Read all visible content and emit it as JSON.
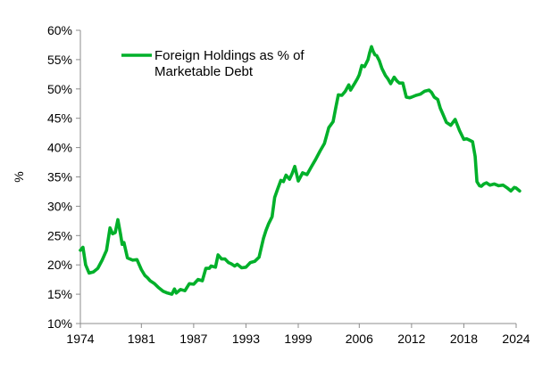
{
  "chart_data": {
    "type": "line",
    "title": "",
    "xlabel": "",
    "ylabel": "%",
    "xlim": [
      1974,
      2024
    ],
    "ylim": [
      10,
      60
    ],
    "xticks": [
      1974,
      1981,
      1987,
      1993,
      1999,
      2006,
      2012,
      2018,
      2024
    ],
    "xtick_labels": [
      "1974",
      "1981",
      "1987",
      "1993",
      "1999",
      "2006",
      "2012",
      "2018",
      "2024"
    ],
    "yticks": [
      10,
      15,
      20,
      25,
      30,
      35,
      40,
      45,
      50,
      55,
      60
    ],
    "ytick_labels": [
      "10%",
      "15%",
      "20%",
      "25%",
      "30%",
      "35%",
      "40%",
      "45%",
      "50%",
      "55%",
      "60%"
    ],
    "grid": false,
    "legend": {
      "position": "top-left",
      "lines": [
        "Foreign Holdings as % of",
        "Marketable Debt"
      ]
    },
    "color": "#00b02a",
    "series": [
      {
        "name": "Foreign Holdings as % of Marketable Debt",
        "x": [
          1974.0,
          1974.3,
          1974.6,
          1975.0,
          1975.5,
          1976.0,
          1976.5,
          1977.0,
          1977.4,
          1977.7,
          1978.0,
          1978.3,
          1978.6,
          1978.8,
          1979.0,
          1979.4,
          1979.7,
          1980.0,
          1980.5,
          1981.0,
          1981.4,
          1981.7,
          1982.0,
          1982.5,
          1983.0,
          1983.5,
          1984.0,
          1984.5,
          1984.8,
          1985.0,
          1985.5,
          1986.0,
          1986.5,
          1987.0,
          1987.5,
          1988.0,
          1988.4,
          1988.8,
          1989.0,
          1989.5,
          1989.8,
          1990.2,
          1990.6,
          1991.0,
          1991.3,
          1991.7,
          1992.0,
          1992.5,
          1993.0,
          1993.5,
          1994.0,
          1994.5,
          1995.0,
          1995.3,
          1995.6,
          1996.0,
          1996.3,
          1996.6,
          1997.0,
          1997.3,
          1997.6,
          1998.0,
          1998.3,
          1998.6,
          1999.0,
          1999.5,
          2000.0,
          2000.5,
          2001.0,
          2001.5,
          2002.0,
          2002.5,
          2003.0,
          2003.3,
          2003.6,
          2004.0,
          2004.4,
          2004.8,
          2005.0,
          2005.5,
          2005.8,
          2006.0,
          2006.3,
          2006.6,
          2007.0,
          2007.2,
          2007.4,
          2007.6,
          2007.8,
          2008.0,
          2008.3,
          2008.6,
          2009.0,
          2009.3,
          2009.6,
          2010.0,
          2010.3,
          2010.6,
          2011.0,
          2011.4,
          2011.8,
          2012.0,
          2012.5,
          2013.0,
          2013.5,
          2014.0,
          2014.3,
          2014.6,
          2015.0,
          2015.3,
          2015.6,
          2016.0,
          2016.5,
          2017.0,
          2017.5,
          2018.0,
          2018.3,
          2018.6,
          2019.0,
          2019.3,
          2019.5,
          2019.8,
          2020.0,
          2020.3,
          2020.6,
          2021.0,
          2021.5,
          2022.0,
          2022.5,
          2023.0,
          2023.4,
          2023.8,
          2024.0,
          2024.4
        ],
        "values": [
          22.5,
          23.0,
          20.0,
          18.6,
          18.8,
          19.4,
          20.8,
          22.5,
          26.3,
          25.3,
          25.5,
          27.7,
          25.3,
          23.5,
          23.8,
          21.2,
          21.0,
          20.8,
          20.9,
          19.2,
          18.2,
          17.8,
          17.3,
          16.8,
          16.1,
          15.5,
          15.2,
          15.0,
          15.9,
          15.2,
          15.8,
          15.6,
          16.8,
          16.7,
          17.5,
          17.3,
          19.4,
          19.4,
          19.8,
          19.6,
          21.7,
          21.0,
          21.0,
          20.4,
          20.2,
          19.8,
          20.1,
          19.5,
          19.6,
          20.4,
          20.6,
          21.3,
          24.5,
          25.9,
          27.0,
          28.2,
          31.5,
          32.8,
          34.4,
          34.2,
          35.3,
          34.6,
          35.6,
          36.8,
          34.3,
          35.7,
          35.4,
          36.7,
          38.0,
          39.4,
          40.7,
          43.4,
          44.4,
          46.8,
          49.0,
          48.9,
          49.6,
          50.7,
          49.8,
          51.0,
          51.8,
          52.4,
          54.0,
          53.8,
          55.0,
          56.2,
          57.2,
          56.4,
          55.8,
          55.7,
          54.8,
          53.5,
          52.3,
          51.7,
          50.9,
          52.0,
          51.4,
          51.0,
          51.0,
          48.6,
          48.5,
          48.6,
          48.9,
          49.1,
          49.6,
          49.8,
          49.4,
          48.6,
          48.2,
          46.7,
          45.7,
          44.3,
          43.8,
          44.8,
          42.9,
          41.4,
          41.5,
          41.3,
          41.0,
          38.5,
          34.2,
          33.5,
          33.4,
          33.8,
          34.0,
          33.6,
          33.8,
          33.5,
          33.6,
          33.1,
          32.6,
          33.2,
          33.1,
          32.6
        ]
      }
    ]
  }
}
